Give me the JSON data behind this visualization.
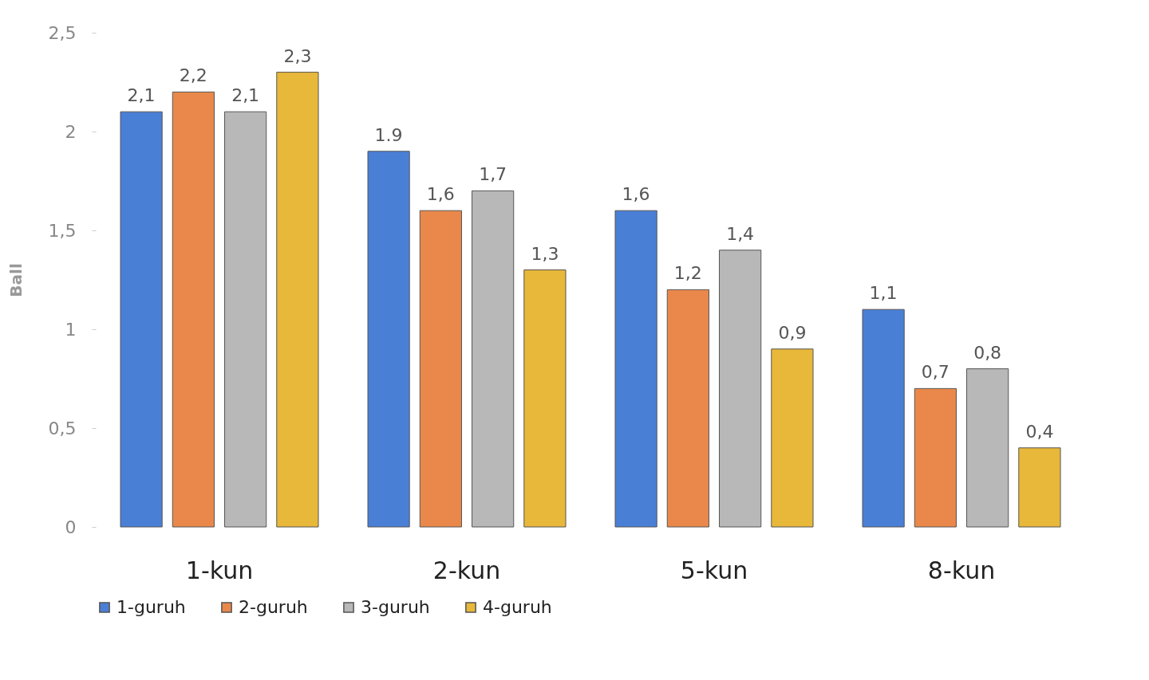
{
  "chart_data": {
    "type": "bar",
    "ylabel": "Ball",
    "categories": [
      "1-kun",
      "2-kun",
      "5-kun",
      "8-kun"
    ],
    "series": [
      {
        "name": "1-guruh",
        "color": "#4a7fd6",
        "values": [
          2.1,
          1.9,
          1.6,
          1.1
        ],
        "value_labels": [
          "2,1",
          "1.9",
          "1,6",
          "1,1"
        ]
      },
      {
        "name": "2-guruh",
        "color": "#e9884a",
        "values": [
          2.2,
          1.6,
          1.2,
          0.7
        ],
        "value_labels": [
          "2,2",
          "1,6",
          "1,2",
          "0,7"
        ]
      },
      {
        "name": "3-guruh",
        "color": "#b8b8b8",
        "values": [
          2.1,
          1.7,
          1.4,
          0.8
        ],
        "value_labels": [
          "2,1",
          "1,7",
          "1,4",
          "0,8"
        ]
      },
      {
        "name": "4-guruh",
        "color": "#e8b83a",
        "values": [
          2.3,
          1.3,
          0.9,
          0.4
        ],
        "value_labels": [
          "2,3",
          "1,3",
          "0,9",
          "0,4"
        ]
      }
    ],
    "ylim": [
      0,
      2.5
    ],
    "yticks": [
      {
        "value": 0,
        "label": "0"
      },
      {
        "value": 0.5,
        "label": "0,5"
      },
      {
        "value": 1,
        "label": "1"
      },
      {
        "value": 1.5,
        "label": "1,5"
      },
      {
        "value": 2,
        "label": "2"
      },
      {
        "value": 2.5,
        "label": "2,5"
      }
    ],
    "grid": false,
    "legend": "bottom"
  }
}
